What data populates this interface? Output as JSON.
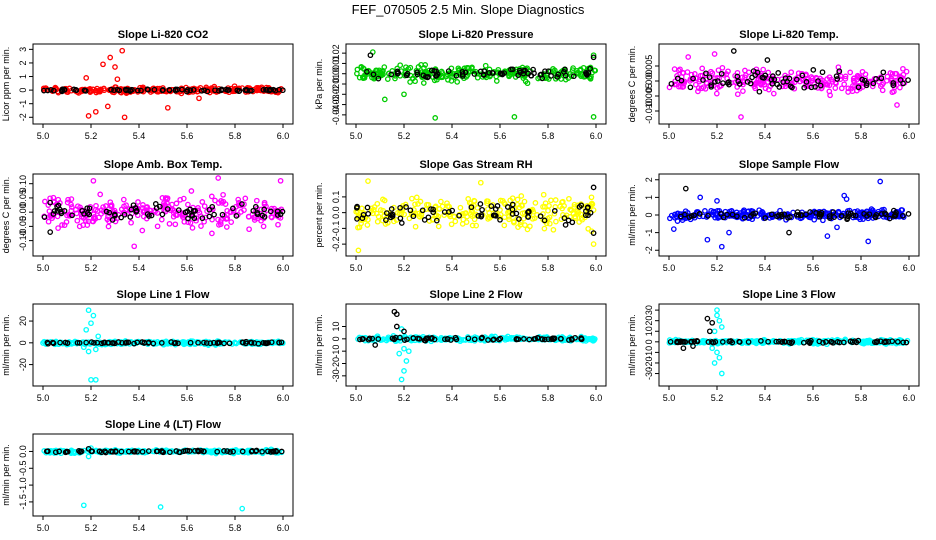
{
  "page": {
    "title": "FEF_070505  2.5 Min. Slope Diagnostics"
  },
  "colors": {
    "black": "#000000",
    "red": "#ff0000",
    "green": "#00cc00",
    "magenta": "#ff00ff",
    "yellow": "#ffff00",
    "blue": "#0000ff",
    "cyan": "#00ffff"
  },
  "chart_data": [
    {
      "type": "scatter",
      "title": "Slope Li-820 CO2",
      "ylabel": "Licor ppm per min.",
      "xlim": [
        5.0,
        6.0
      ],
      "xticks": [
        "5.0",
        "5.2",
        "5.4",
        "5.6",
        "5.8",
        "6.0"
      ],
      "ylim": [
        -2.2,
        3.1
      ],
      "yticks": [
        "-2",
        "-1",
        "0",
        "1",
        "2",
        "3"
      ],
      "ytick_values": [
        -2,
        -1,
        0,
        1,
        2,
        3
      ],
      "color": "#ff0000",
      "series": [
        {
          "kind": "colored",
          "band": 0.35,
          "outliers": [
            [
              5.28,
              2.4
            ],
            [
              5.33,
              2.9
            ],
            [
              5.25,
              1.9
            ],
            [
              5.3,
              1.7
            ],
            [
              5.19,
              -1.9
            ],
            [
              5.22,
              -1.6
            ],
            [
              5.34,
              -2.0
            ],
            [
              5.27,
              -1.2
            ],
            [
              5.52,
              -1.3
            ],
            [
              5.65,
              -0.6
            ],
            [
              5.18,
              0.9
            ],
            [
              5.31,
              0.8
            ]
          ]
        },
        {
          "kind": "black",
          "band": 0.15,
          "outliers": []
        }
      ]
    },
    {
      "type": "scatter",
      "title": "Slope Li-820 Pressure",
      "ylabel": "kPa per min.",
      "xlim": [
        5.0,
        6.0
      ],
      "xticks": [
        "5.0",
        "5.2",
        "5.4",
        "5.6",
        "5.8",
        "6.0"
      ],
      "ylim": [
        -0.045,
        0.025
      ],
      "yticks": [
        "-0.04",
        "-0.03",
        "-0.02",
        "-0.01",
        "0.00",
        "0.01",
        "0.02"
      ],
      "ytick_values": [
        -0.04,
        -0.03,
        -0.02,
        -0.01,
        0,
        0.01,
        0.02
      ],
      "color": "#00cc00",
      "series": [
        {
          "kind": "colored",
          "band": 0.012,
          "outliers": [
            [
              5.07,
              0.021
            ],
            [
              5.33,
              -0.043
            ],
            [
              5.66,
              -0.042
            ],
            [
              5.99,
              -0.042
            ],
            [
              5.99,
              0.018
            ],
            [
              5.12,
              -0.025
            ],
            [
              5.2,
              -0.02
            ]
          ]
        },
        {
          "kind": "black",
          "band": 0.008,
          "outliers": [
            [
              5.06,
              0.018
            ],
            [
              5.99,
              0.016
            ]
          ]
        }
      ]
    },
    {
      "type": "scatter",
      "title": "Slope Li-820 Temp.",
      "ylabel": "degrees C per min.",
      "xlim": [
        5.0,
        6.0
      ],
      "xticks": [
        "5.0",
        "5.2",
        "5.4",
        "5.6",
        "5.8",
        "6.0"
      ],
      "ylim": [
        -0.013,
        0.011
      ],
      "yticks": [
        "-0.010",
        "-0.005",
        "0.000",
        "0.005"
      ],
      "ytick_values": [
        -0.01,
        -0.005,
        0,
        0.005
      ],
      "color": "#ff00ff",
      "series": [
        {
          "kind": "colored",
          "band": 0.006,
          "outliers": [
            [
              5.3,
              -0.012
            ],
            [
              5.08,
              0.008
            ],
            [
              5.19,
              0.009
            ],
            [
              5.95,
              -0.008
            ]
          ]
        },
        {
          "kind": "black",
          "band": 0.005,
          "outliers": [
            [
              5.27,
              0.01
            ],
            [
              5.41,
              0.007
            ]
          ]
        }
      ]
    },
    {
      "type": "scatter",
      "title": "Slope Amb. Box Temp.",
      "ylabel": "degrees C per min.",
      "xlim": [
        5.0,
        6.0
      ],
      "xticks": [
        "5.0",
        "5.2",
        "5.4",
        "5.6",
        "5.8",
        "6.0"
      ],
      "ylim": [
        -0.14,
        0.12
      ],
      "yticks": [
        "-0.10",
        "-0.05",
        "0.00",
        "0.05",
        "0.10"
      ],
      "ytick_values": [
        -0.1,
        -0.05,
        0,
        0.05,
        0.1
      ],
      "color": "#ff00ff",
      "series": [
        {
          "kind": "colored",
          "band": 0.085,
          "outliers": [
            [
              5.38,
              -0.12
            ],
            [
              5.99,
              0.11
            ],
            [
              5.21,
              0.11
            ],
            [
              5.73,
              0.12
            ]
          ]
        },
        {
          "kind": "black",
          "band": 0.05,
          "outliers": [
            [
              5.03,
              -0.07
            ]
          ]
        }
      ]
    },
    {
      "type": "scatter",
      "title": "Slope Gas Stream RH",
      "ylabel": "percent per min.",
      "xlim": [
        5.0,
        6.0
      ],
      "xticks": [
        "5.0",
        "5.2",
        "5.4",
        "5.6",
        "5.8",
        "6.0"
      ],
      "ylim": [
        -0.25,
        0.22
      ],
      "yticks": [
        "-0.2",
        "-0.1",
        "0.0",
        "0.1"
      ],
      "ytick_values": [
        -0.2,
        -0.1,
        0,
        0.1
      ],
      "color": "#ffff00",
      "series": [
        {
          "kind": "colored",
          "band": 0.16,
          "outliers": [
            [
              5.01,
              -0.24
            ],
            [
              5.05,
              0.2
            ],
            [
              5.52,
              0.19
            ],
            [
              5.99,
              -0.2
            ]
          ]
        },
        {
          "kind": "black",
          "band": 0.11,
          "outliers": [
            [
              5.99,
              0.16
            ],
            [
              5.99,
              -0.13
            ]
          ]
        }
      ]
    },
    {
      "type": "scatter",
      "title": "Slope Sample Flow",
      "ylabel": "ml/min per min.",
      "xlim": [
        5.0,
        6.0
      ],
      "xticks": [
        "5.0",
        "5.2",
        "5.4",
        "5.6",
        "5.8",
        "6.0"
      ],
      "ylim": [
        -2.1,
        2.1
      ],
      "yticks": [
        "-2",
        "-1",
        "0",
        "1",
        "2"
      ],
      "ytick_values": [
        -2,
        -1,
        0,
        1,
        2
      ],
      "color": "#0000ff",
      "series": [
        {
          "kind": "colored",
          "band": 0.45,
          "outliers": [
            [
              5.22,
              -1.8
            ],
            [
              5.88,
              1.9
            ],
            [
              5.73,
              1.1
            ],
            [
              5.74,
              0.9
            ],
            [
              5.7,
              -0.7
            ],
            [
              5.66,
              -1.2
            ],
            [
              5.83,
              -1.5
            ],
            [
              5.13,
              1.0
            ],
            [
              5.16,
              -1.4
            ],
            [
              5.25,
              -1.0
            ],
            [
              5.2,
              0.8
            ],
            [
              5.02,
              -0.8
            ]
          ]
        },
        {
          "kind": "black",
          "band": 0.3,
          "outliers": [
            [
              5.07,
              1.5
            ],
            [
              5.5,
              -1.0
            ]
          ]
        }
      ]
    },
    {
      "type": "scatter",
      "title": "Slope Line 1 Flow",
      "ylabel": "ml/min per min.",
      "xlim": [
        5.0,
        6.0
      ],
      "xticks": [
        "5.0",
        "5.2",
        "5.4",
        "5.6",
        "5.8",
        "6.0"
      ],
      "ylim": [
        -36,
        32
      ],
      "yticks": [
        "-20",
        "0",
        "20"
      ],
      "ytick_values": [
        -20,
        0,
        20
      ],
      "color": "#00ffff",
      "series": [
        {
          "kind": "colored",
          "band": 2.5,
          "outliers": [
            [
              5.19,
              30
            ],
            [
              5.21,
              25
            ],
            [
              5.2,
              18
            ],
            [
              5.18,
              12
            ],
            [
              5.22,
              -6
            ],
            [
              5.19,
              -8
            ],
            [
              5.2,
              -34
            ],
            [
              5.22,
              -34
            ],
            [
              5.17,
              -4
            ],
            [
              5.23,
              6
            ]
          ]
        },
        {
          "kind": "black",
          "band": 1.5,
          "outliers": []
        }
      ]
    },
    {
      "type": "scatter",
      "title": "Slope Line 2 Flow",
      "ylabel": "ml/min per min.",
      "xlim": [
        5.0,
        6.0
      ],
      "xticks": [
        "5.0",
        "5.2",
        "5.4",
        "5.6",
        "5.8",
        "6.0"
      ],
      "ylim": [
        -35,
        25
      ],
      "yticks": [
        "-30",
        "-20",
        "-10",
        "0",
        "10"
      ],
      "ytick_values": [
        -30,
        -20,
        -10,
        0,
        10
      ],
      "color": "#00ffff",
      "series": [
        {
          "kind": "colored",
          "band": 3,
          "outliers": [
            [
              5.19,
              -33
            ],
            [
              5.2,
              -26
            ],
            [
              5.21,
              -18
            ],
            [
              5.18,
              -12
            ],
            [
              5.22,
              -10
            ],
            [
              5.2,
              -8
            ],
            [
              5.19,
              8
            ]
          ]
        },
        {
          "kind": "black",
          "band": 2,
          "outliers": [
            [
              5.16,
              22
            ],
            [
              5.17,
              20
            ],
            [
              5.17,
              10
            ],
            [
              5.2,
              6
            ],
            [
              5.08,
              -5
            ]
          ]
        }
      ]
    },
    {
      "type": "scatter",
      "title": "Slope Line 3 Flow",
      "ylabel": "ml/min per min.",
      "xlim": [
        5.0,
        6.0
      ],
      "xticks": [
        "5.0",
        "5.2",
        "5.4",
        "5.6",
        "5.8",
        "6.0"
      ],
      "ylim": [
        -38,
        32
      ],
      "yticks": [
        "-30",
        "-20",
        "-10",
        "0",
        "10",
        "20",
        "30"
      ],
      "ytick_values": [
        -30,
        -20,
        -10,
        0,
        10,
        20,
        30
      ],
      "color": "#00ffff",
      "series": [
        {
          "kind": "colored",
          "band": 3,
          "outliers": [
            [
              5.2,
              30
            ],
            [
              5.2,
              25
            ],
            [
              5.21,
              20
            ],
            [
              5.19,
              10
            ],
            [
              5.2,
              -10
            ],
            [
              5.21,
              -15
            ],
            [
              5.19,
              -20
            ],
            [
              5.22,
              -30
            ],
            [
              5.18,
              -6
            ],
            [
              5.22,
              14
            ]
          ]
        },
        {
          "kind": "black",
          "band": 2,
          "outliers": [
            [
              5.16,
              22
            ],
            [
              5.18,
              18
            ],
            [
              5.17,
              10
            ],
            [
              5.1,
              -4
            ],
            [
              5.06,
              -6
            ]
          ]
        }
      ]
    },
    {
      "type": "scatter",
      "title": "Slope Line 4 (LT) Flow",
      "ylabel": "ml/min per min.",
      "xlim": [
        5.0,
        6.0
      ],
      "xticks": [
        "5.0",
        "5.2",
        "5.4",
        "5.6",
        "5.8",
        "6.0"
      ],
      "ylim": [
        -1.8,
        0.4
      ],
      "yticks": [
        "-1.5",
        "-1.0",
        "-0.5",
        "0.0"
      ],
      "ytick_values": [
        -1.5,
        -1,
        -0.5,
        0
      ],
      "color": "#00ffff",
      "series": [
        {
          "kind": "colored",
          "band": 0.08,
          "outliers": [
            [
              5.17,
              -1.6
            ],
            [
              5.49,
              -1.65
            ],
            [
              5.83,
              -1.7
            ],
            [
              5.19,
              -0.15
            ],
            [
              5.2,
              0.1
            ]
          ]
        },
        {
          "kind": "black",
          "band": 0.05,
          "outliers": [
            [
              5.19,
              0.08
            ]
          ]
        }
      ]
    }
  ]
}
